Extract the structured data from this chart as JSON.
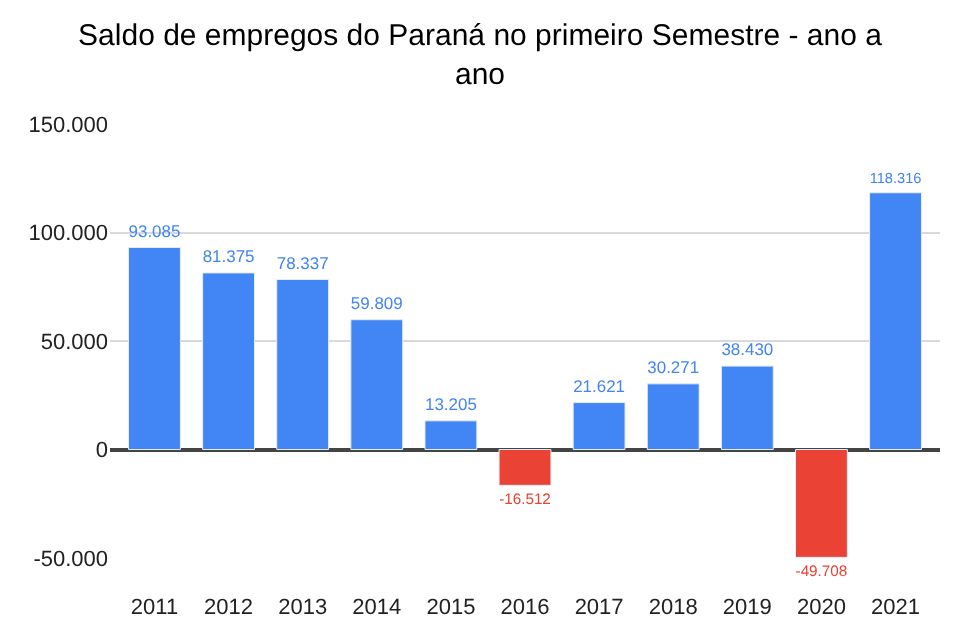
{
  "chart_data": {
    "type": "bar",
    "title": "Saldo de empregos do Paraná no primeiro Semestre - ano a ano",
    "categories": [
      "2011",
      "2012",
      "2013",
      "2014",
      "2015",
      "2016",
      "2017",
      "2018",
      "2019",
      "2020",
      "2021"
    ],
    "values": [
      93085,
      81375,
      78337,
      59809,
      13205,
      -16512,
      21621,
      30271,
      38430,
      -49708,
      118316
    ],
    "colors": [
      "#4285f4",
      "#4285f4",
      "#4285f4",
      "#4285f4",
      "#4285f4",
      "#ea4335",
      "#4285f4",
      "#4285f4",
      "#4285f4",
      "#ea4335",
      "#4285f4"
    ],
    "value_labels": [
      "93.085",
      "81.375",
      "78.337",
      "59.809",
      "13.205",
      "-16.512",
      "21.621",
      "30.271",
      "38.430",
      "-49.708",
      "118.316"
    ],
    "ylim": [
      -50000,
      150000
    ],
    "yticks": [
      {
        "value": -50000,
        "label": "-50.000"
      },
      {
        "value": 0,
        "label": "0"
      },
      {
        "value": 50000,
        "label": "50.000"
      },
      {
        "value": 100000,
        "label": "100.000"
      },
      {
        "value": 150000,
        "label": "150.000"
      }
    ],
    "grid": "y"
  }
}
